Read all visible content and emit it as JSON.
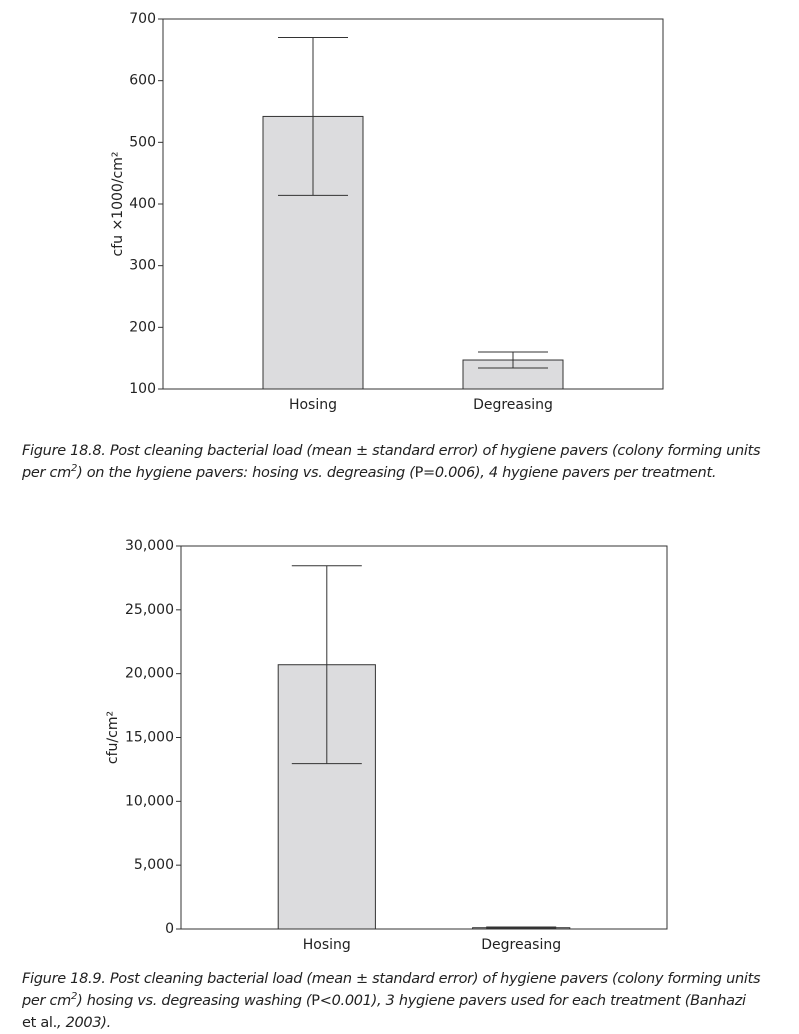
{
  "chart_data": [
    {
      "type": "bar",
      "y_label": "cfu ×1000/cm²",
      "categories": [
        "Hosing",
        "Degreasing"
      ],
      "values": [
        542,
        147
      ],
      "errors": [
        128,
        13
      ],
      "color": "#dcdcde",
      "ylim": [
        100,
        700
      ],
      "yticks": [
        100,
        200,
        300,
        400,
        500,
        600,
        700
      ],
      "caption": [
        "Figure 18.8. Post cleaning bacterial load (mean ± standard error) of hygiene pavers (colony forming units per cm",
        "2",
        ") on the hygiene pavers: hosing vs. degreasing (",
        "P",
        "=0.006), 4 hygiene pavers per treatment."
      ]
    },
    {
      "type": "bar",
      "y_label": "cfu/cm²",
      "categories": [
        "Hosing",
        "Degreasing"
      ],
      "values": [
        20700,
        100
      ],
      "errors": [
        7750,
        60
      ],
      "color": "#dcdcde",
      "ylim": [
        0,
        30000
      ],
      "yticks": [
        0,
        {
          "value": 5000,
          "label": "5,000"
        },
        {
          "value": 10000,
          "label": "10,000"
        },
        {
          "value": 15000,
          "label": "15,000"
        },
        {
          "value": 20000,
          "label": "20,000"
        },
        {
          "value": 25000,
          "label": "25,000"
        },
        {
          "value": 30000,
          "label": "30,000"
        }
      ],
      "caption": [
        "Figure 18.9. Post cleaning bacterial load (mean ± standard error) of hygiene pavers (colony forming units per cm",
        "2",
        ") hosing vs. degreasing washing (",
        "P",
        "<0.001), 3 hygiene pavers used for each treatment (Banhazi ",
        "et al.",
        ", 2003)."
      ]
    }
  ]
}
